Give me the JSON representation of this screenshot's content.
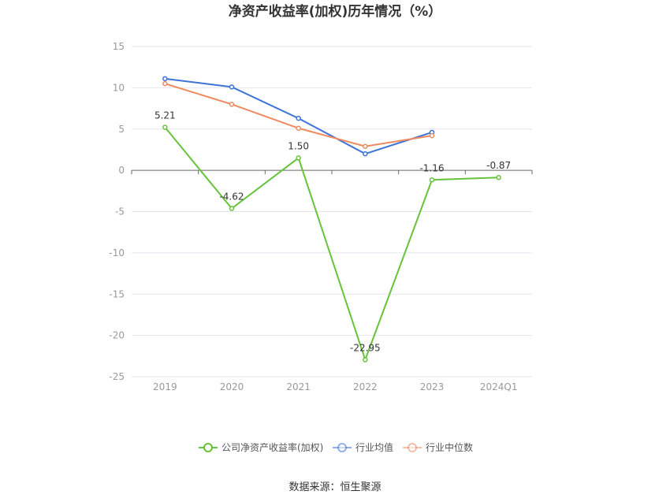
{
  "chart_data": {
    "type": "line",
    "title": "净资产收益率(加权)历年情况（%）",
    "categories": [
      "2019",
      "2020",
      "2021",
      "2022",
      "2023",
      "2024Q1"
    ],
    "ylim": [
      -25,
      15
    ],
    "yticks": [
      15,
      10,
      5,
      0,
      -5,
      -10,
      -15,
      -20,
      -25
    ],
    "grid": true,
    "legend_position": "bottom",
    "series": [
      {
        "name": "公司净资产收益率(加权)",
        "color": "#66c33a",
        "values": [
          5.21,
          -4.62,
          1.5,
          -22.95,
          -1.16,
          -0.87
        ],
        "labels": [
          "5.21",
          "-4.62",
          "1.50",
          "-22.95",
          "-1.16",
          "-0.87"
        ]
      },
      {
        "name": "行业均值",
        "color": "#3b73d6",
        "values": [
          11.1,
          10.1,
          6.3,
          2.0,
          4.6,
          null
        ]
      },
      {
        "name": "行业中位数",
        "color": "#ef8a5f",
        "values": [
          10.5,
          8.0,
          5.1,
          2.9,
          4.2,
          null
        ]
      }
    ],
    "source": "数据来源：恒生聚源"
  }
}
